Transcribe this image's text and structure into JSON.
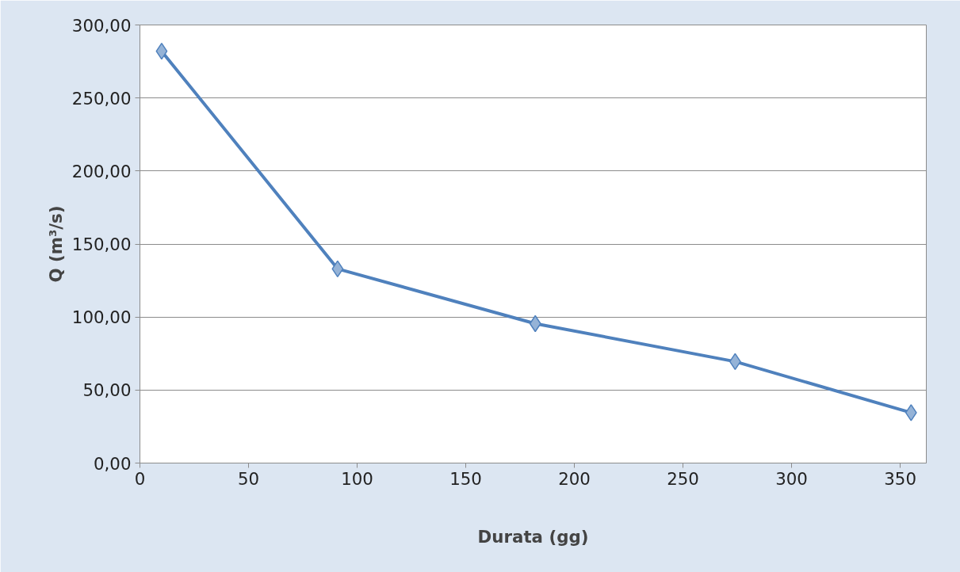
{
  "chart_data": {
    "type": "line",
    "xlabel": "Durata (gg)",
    "ylabel": "Q (m³/s)",
    "x": [
      10,
      91,
      182,
      274,
      355
    ],
    "series": [
      {
        "color": "#4f81bd",
        "values": [
          282,
          133,
          95.5,
          69.5,
          34.5
        ]
      }
    ],
    "marker": "diamond",
    "line_style": "solid",
    "grid": "y",
    "xlim": [
      0,
      362
    ],
    "xticks": [
      0,
      50,
      100,
      150,
      200,
      250,
      300,
      350
    ],
    "ylim": [
      0,
      300
    ],
    "yticks": [
      {
        "value": 0,
        "label": "0,00"
      },
      {
        "value": 50,
        "label": "50,00"
      },
      {
        "value": 100,
        "label": "100,00"
      },
      {
        "value": 150,
        "label": "150,00"
      },
      {
        "value": 200,
        "label": "200,00"
      },
      {
        "value": 250,
        "label": "250,00"
      },
      {
        "value": 300,
        "label": "300,00"
      }
    ]
  }
}
